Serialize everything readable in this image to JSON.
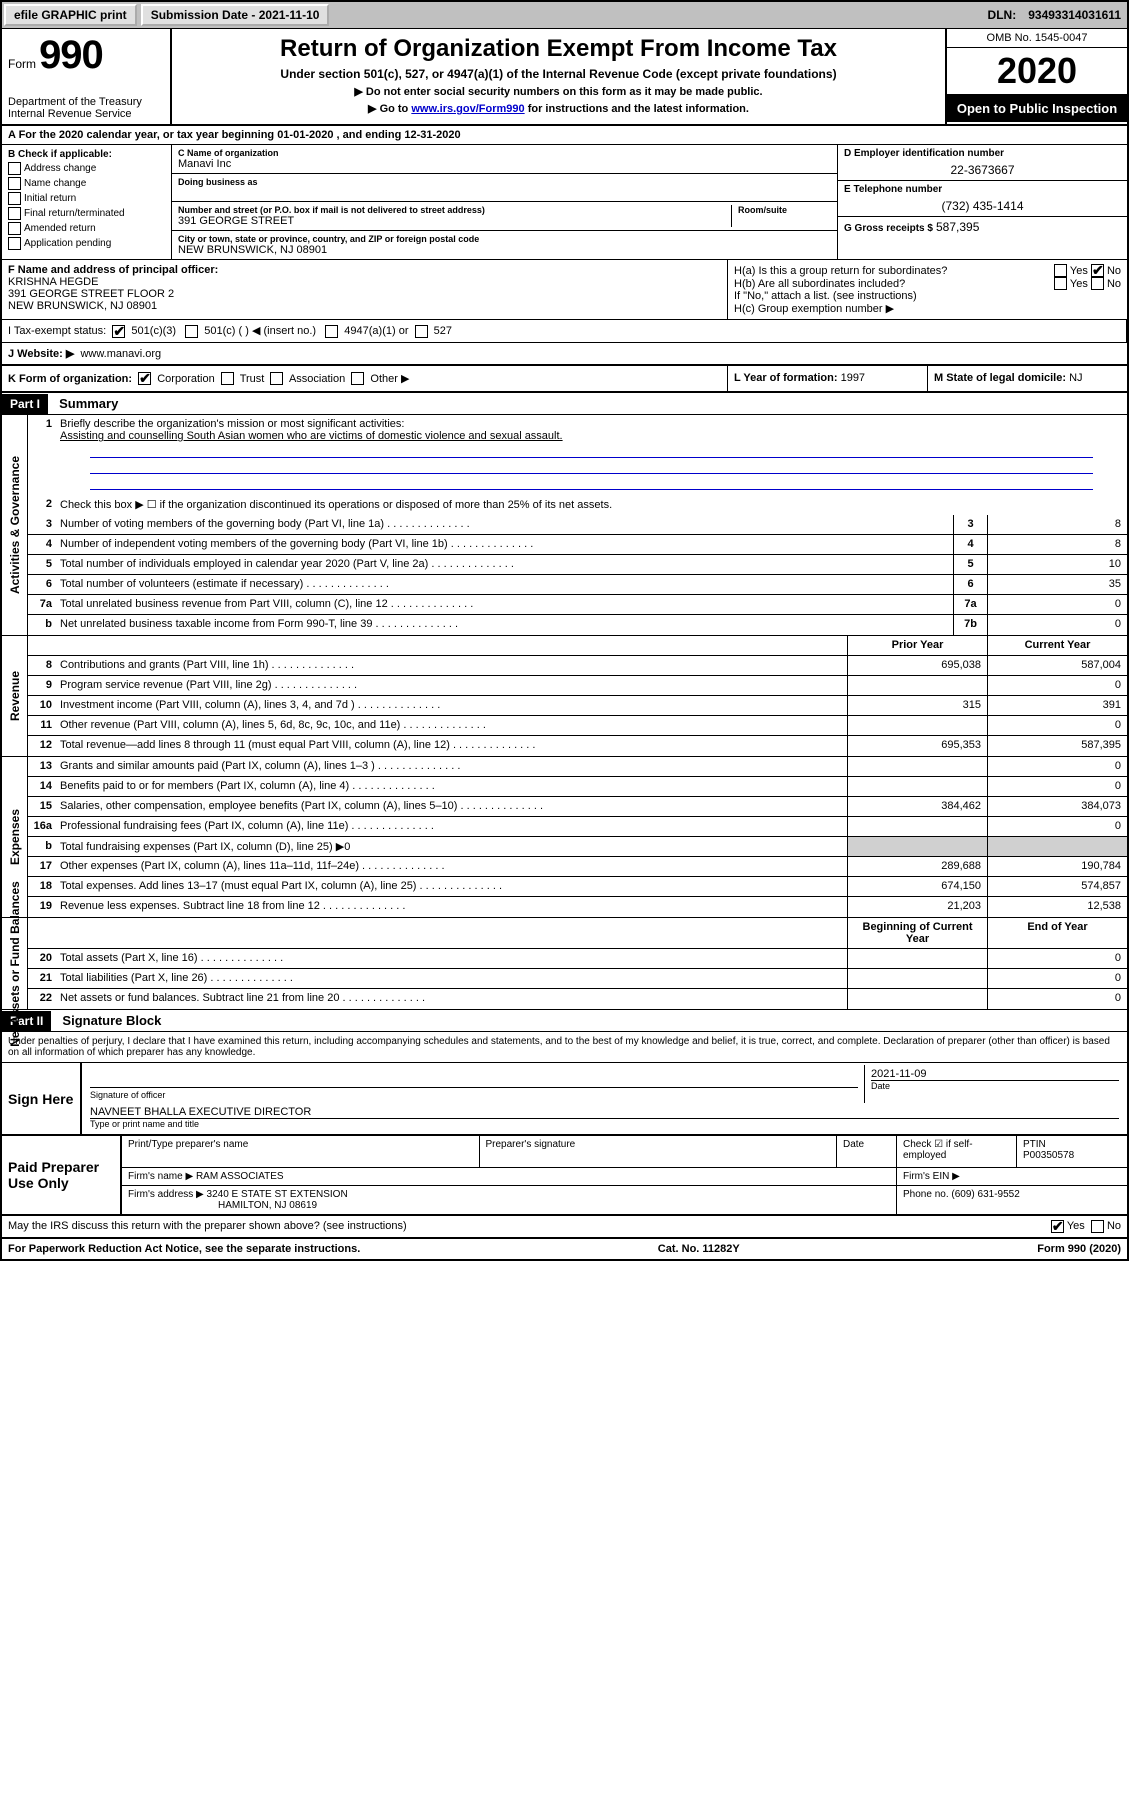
{
  "topbar": {
    "efile": "efile GRAPHIC print",
    "sub_label": "Submission Date -",
    "sub_date": "2021-11-10",
    "dln_label": "DLN:",
    "dln": "93493314031611"
  },
  "header": {
    "form_word": "Form",
    "form_no": "990",
    "dept": "Department of the Treasury\nInternal Revenue Service",
    "title": "Return of Organization Exempt From Income Tax",
    "subtitle": "Under section 501(c), 527, or 4947(a)(1) of the Internal Revenue Code (except private foundations)",
    "note1": "▶ Do not enter social security numbers on this form as it may be made public.",
    "note2_pre": "▶ Go to ",
    "note2_link": "www.irs.gov/Form990",
    "note2_post": " for instructions and the latest information.",
    "omb": "OMB No. 1545-0047",
    "year": "2020",
    "inspection": "Open to Public Inspection"
  },
  "line_a": "A For the 2020 calendar year, or tax year beginning 01-01-2020    , and ending 12-31-2020",
  "col_b": {
    "header": "B Check if applicable:",
    "items": [
      "Address change",
      "Name change",
      "Initial return",
      "Final return/terminated",
      "Amended return",
      "Application pending"
    ]
  },
  "col_c": {
    "name_lab": "C Name of organization",
    "name": "Manavi Inc",
    "dba_lab": "Doing business as",
    "dba": "",
    "addr_lab": "Number and street (or P.O. box if mail is not delivered to street address)",
    "room_lab": "Room/suite",
    "addr": "391 GEORGE STREET",
    "city_lab": "City or town, state or province, country, and ZIP or foreign postal code",
    "city": "NEW BRUNSWICK, NJ  08901"
  },
  "col_d": {
    "ein_lab": "D Employer identification number",
    "ein": "22-3673667",
    "tel_lab": "E Telephone number",
    "tel": "(732) 435-1414",
    "gross_lab": "G Gross receipts $",
    "gross": "587,395"
  },
  "section_f": {
    "lab": "F Name and address of principal officer:",
    "name": "KRISHNA HEGDE",
    "addr1": "391 GEORGE STREET FLOOR 2",
    "addr2": "NEW BRUNSWICK, NJ  08901"
  },
  "section_h": {
    "ha": "H(a)  Is this a group return for subordinates?",
    "hb": "H(b)  Are all subordinates included?",
    "hb_note": "If \"No,\" attach a list. (see instructions)",
    "hc": "H(c)  Group exemption number ▶",
    "yes": "Yes",
    "no": "No"
  },
  "tax_exempt": {
    "lab": "I   Tax-exempt status:",
    "opts": [
      "501(c)(3)",
      "501(c) (  ) ◀ (insert no.)",
      "4947(a)(1) or",
      "527"
    ]
  },
  "website": {
    "lab": "J   Website: ▶",
    "val": "www.manavi.org"
  },
  "row_k": {
    "lab": "K Form of organization:",
    "opts": [
      "Corporation",
      "Trust",
      "Association",
      "Other ▶"
    ],
    "year_lab": "L Year of formation:",
    "year": "1997",
    "state_lab": "M State of legal domicile:",
    "state": "NJ"
  },
  "part1": {
    "hdr": "Part I",
    "title": "Summary"
  },
  "q1": {
    "num": "1",
    "label": "Briefly describe the organization's mission or most significant activities:",
    "text": "Assisting and counselling South Asian women who are victims of domestic violence and sexual assault."
  },
  "q2": {
    "num": "2",
    "label": "Check this box ▶ ☐  if the organization discontinued its operations or disposed of more than 25% of its net assets."
  },
  "governance": [
    {
      "num": "3",
      "label": "Number of voting members of the governing body (Part VI, line 1a)",
      "val": "8"
    },
    {
      "num": "4",
      "label": "Number of independent voting members of the governing body (Part VI, line 1b)",
      "val": "8"
    },
    {
      "num": "5",
      "label": "Total number of individuals employed in calendar year 2020 (Part V, line 2a)",
      "val": "10"
    },
    {
      "num": "6",
      "label": "Total number of volunteers (estimate if necessary)",
      "val": "35"
    },
    {
      "num": "7a",
      "label": "Total unrelated business revenue from Part VIII, column (C), line 12",
      "val": "0"
    },
    {
      "num": "b",
      "label": "Net unrelated business taxable income from Form 990-T, line 39",
      "cnum": "7b",
      "val": "0"
    }
  ],
  "side_labels": {
    "gov": "Activities & Governance",
    "rev": "Revenue",
    "exp": "Expenses",
    "net": "Net Assets or Fund Balances"
  },
  "col_headers": {
    "prior": "Prior Year",
    "current": "Current Year",
    "begin": "Beginning of Current Year",
    "end": "End of Year"
  },
  "revenue": [
    {
      "num": "8",
      "label": "Contributions and grants (Part VIII, line 1h)",
      "prior": "695,038",
      "curr": "587,004"
    },
    {
      "num": "9",
      "label": "Program service revenue (Part VIII, line 2g)",
      "prior": "",
      "curr": "0"
    },
    {
      "num": "10",
      "label": "Investment income (Part VIII, column (A), lines 3, 4, and 7d )",
      "prior": "315",
      "curr": "391"
    },
    {
      "num": "11",
      "label": "Other revenue (Part VIII, column (A), lines 5, 6d, 8c, 9c, 10c, and 11e)",
      "prior": "",
      "curr": "0"
    },
    {
      "num": "12",
      "label": "Total revenue—add lines 8 through 11 (must equal Part VIII, column (A), line 12)",
      "prior": "695,353",
      "curr": "587,395"
    }
  ],
  "expenses": [
    {
      "num": "13",
      "label": "Grants and similar amounts paid (Part IX, column (A), lines 1–3 )",
      "prior": "",
      "curr": "0"
    },
    {
      "num": "14",
      "label": "Benefits paid to or for members (Part IX, column (A), line 4)",
      "prior": "",
      "curr": "0"
    },
    {
      "num": "15",
      "label": "Salaries, other compensation, employee benefits (Part IX, column (A), lines 5–10)",
      "prior": "384,462",
      "curr": "384,073"
    },
    {
      "num": "16a",
      "label": "Professional fundraising fees (Part IX, column (A), line 11e)",
      "prior": "",
      "curr": "0"
    },
    {
      "num": "b",
      "label": "Total fundraising expenses (Part IX, column (D), line 25) ▶0",
      "prior": "grey",
      "curr": "grey"
    },
    {
      "num": "17",
      "label": "Other expenses (Part IX, column (A), lines 11a–11d, 11f–24e)",
      "prior": "289,688",
      "curr": "190,784"
    },
    {
      "num": "18",
      "label": "Total expenses. Add lines 13–17 (must equal Part IX, column (A), line 25)",
      "prior": "674,150",
      "curr": "574,857"
    },
    {
      "num": "19",
      "label": "Revenue less expenses. Subtract line 18 from line 12",
      "prior": "21,203",
      "curr": "12,538"
    }
  ],
  "netassets": [
    {
      "num": "20",
      "label": "Total assets (Part X, line 16)",
      "prior": "",
      "curr": "0"
    },
    {
      "num": "21",
      "label": "Total liabilities (Part X, line 26)",
      "prior": "",
      "curr": "0"
    },
    {
      "num": "22",
      "label": "Net assets or fund balances. Subtract line 21 from line 20",
      "prior": "",
      "curr": "0"
    }
  ],
  "part2": {
    "hdr": "Part II",
    "title": "Signature Block"
  },
  "perjury": "Under penalties of perjury, I declare that I have examined this return, including accompanying schedules and statements, and to the best of my knowledge and belief, it is true, correct, and complete. Declaration of preparer (other than officer) is based on all information of which preparer has any knowledge.",
  "sign": {
    "here": "Sign Here",
    "sig_lab": "Signature of officer",
    "date_lab": "Date",
    "date": "2021-11-09",
    "name": "NAVNEET BHALLA  EXECUTIVE DIRECTOR",
    "name_lab": "Type or print name and title"
  },
  "preparer": {
    "here": "Paid Preparer Use Only",
    "name_lab": "Print/Type preparer's name",
    "sig_lab": "Preparer's signature",
    "date_lab": "Date",
    "check_lab": "Check ☑ if self-employed",
    "ptin_lab": "PTIN",
    "ptin": "P00350578",
    "firm_name_lab": "Firm's name    ▶",
    "firm_name": "RAM ASSOCIATES",
    "firm_ein_lab": "Firm's EIN ▶",
    "firm_addr_lab": "Firm's address ▶",
    "firm_addr1": "3240 E STATE ST EXTENSION",
    "firm_addr2": "HAMILTON, NJ  08619",
    "phone_lab": "Phone no.",
    "phone": "(609) 631-9552"
  },
  "discuss": {
    "label": "May the IRS discuss this return with the preparer shown above? (see instructions)",
    "yes": "Yes",
    "no": "No"
  },
  "footer": {
    "left": "For Paperwork Reduction Act Notice, see the separate instructions.",
    "mid": "Cat. No. 11282Y",
    "right": "Form 990 (2020)"
  },
  "colors": {
    "link": "#0000cc",
    "topbar_bg": "#c0c0c0",
    "grey_cell": "#d0d0d0"
  }
}
